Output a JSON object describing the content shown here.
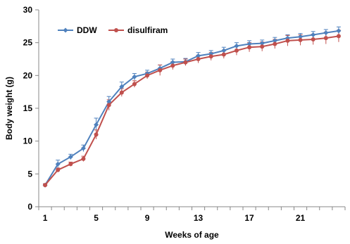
{
  "chart_data": {
    "type": "line",
    "xlabel": "Weeks of age",
    "ylabel": "Body weight (g)",
    "xlim": [
      1,
      24
    ],
    "ylim": [
      0,
      30
    ],
    "x_ticks": [
      1,
      5,
      9,
      13,
      17,
      21
    ],
    "y_ticks": [
      0,
      5,
      10,
      15,
      20,
      25,
      30
    ],
    "x_tick_labels": [
      "1",
      "5",
      "9",
      "13",
      "17",
      "21"
    ],
    "y_tick_labels": [
      "0",
      "5",
      "10",
      "15",
      "20",
      "25",
      "30"
    ],
    "legend_position": "top-left",
    "grid": false,
    "x": [
      1,
      2,
      3,
      4,
      5,
      6,
      7,
      8,
      9,
      10,
      11,
      12,
      13,
      14,
      15,
      16,
      17,
      18,
      19,
      20,
      21,
      22,
      23,
      24
    ],
    "series": [
      {
        "name": "DDW",
        "color": "#4f81bd",
        "marker": "diamond",
        "values": [
          3.3,
          6.5,
          7.6,
          8.9,
          12.5,
          16.0,
          18.3,
          19.8,
          20.3,
          21.1,
          22.0,
          22.1,
          23.0,
          23.3,
          23.8,
          24.5,
          24.8,
          24.9,
          25.3,
          25.7,
          25.9,
          26.2,
          26.5,
          26.8
        ],
        "errors": [
          0.2,
          0.6,
          0.4,
          0.5,
          1.0,
          0.8,
          0.7,
          0.5,
          0.5,
          0.5,
          0.5,
          0.5,
          0.5,
          0.5,
          0.5,
          0.5,
          0.5,
          0.5,
          0.5,
          0.5,
          0.5,
          0.5,
          0.5,
          0.6
        ]
      },
      {
        "name": "disulfiram",
        "color": "#c0504d",
        "marker": "circle",
        "values": [
          3.3,
          5.6,
          6.5,
          7.3,
          11.0,
          15.5,
          17.4,
          18.7,
          20.0,
          20.8,
          21.5,
          22.0,
          22.5,
          22.9,
          23.2,
          23.8,
          24.3,
          24.4,
          24.8,
          25.3,
          25.4,
          25.5,
          25.7,
          26.0
        ],
        "errors": [
          0.2,
          0.3,
          0.3,
          0.4,
          0.7,
          0.8,
          0.6,
          0.5,
          0.5,
          0.8,
          0.6,
          0.5,
          0.6,
          0.6,
          0.6,
          0.7,
          0.7,
          0.7,
          0.7,
          0.8,
          0.8,
          0.8,
          0.9,
          0.9
        ]
      }
    ]
  }
}
